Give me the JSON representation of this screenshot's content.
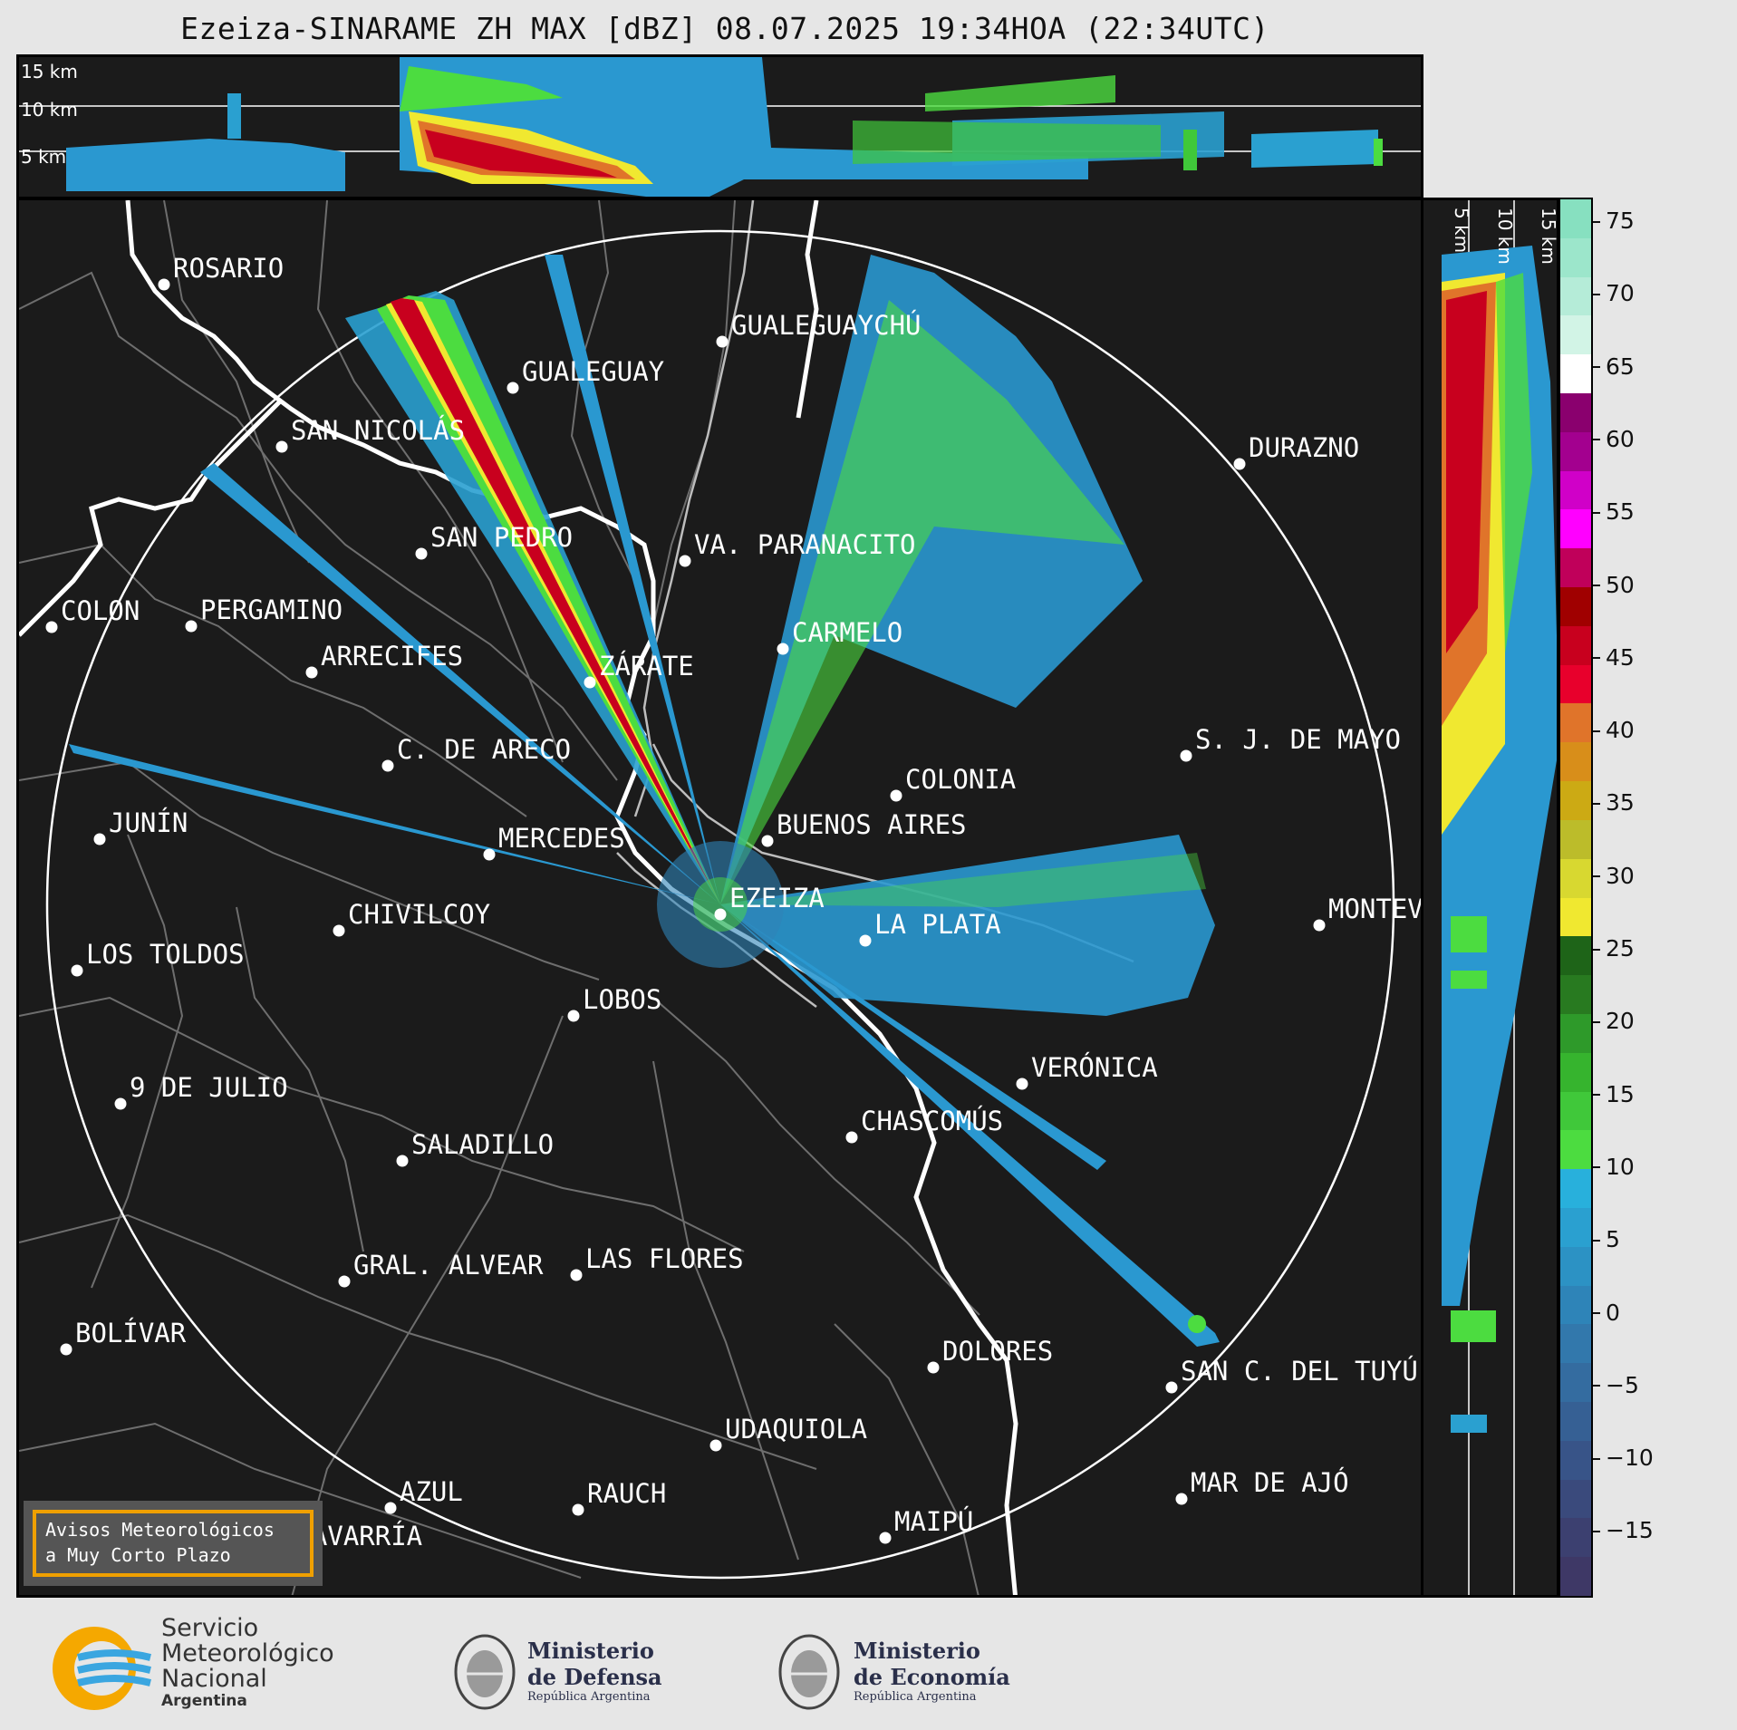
{
  "title": "Ezeiza-SINARAME ZH MAX [dBZ] 08.07.2025 19:34HOA (22:34UTC)",
  "top_panel": {
    "alt_labels": [
      "15 km",
      "10 km",
      "5 km"
    ]
  },
  "right_panel": {
    "alt_labels": [
      "5 km",
      "10 km",
      "15 km"
    ]
  },
  "colorbar": {
    "ticks": [
      "75",
      "70",
      "65",
      "60",
      "55",
      "50",
      "45",
      "40",
      "35",
      "30",
      "25",
      "20",
      "15",
      "10",
      "5",
      "0",
      "−5",
      "−10",
      "−15"
    ],
    "colors": [
      "#87e0c0",
      "#9ce6cb",
      "#b5ecd8",
      "#d2f4e6",
      "#ffffff",
      "#8a006e",
      "#a3008f",
      "#d000c8",
      "#ff00ff",
      "#c0005a",
      "#a00000",
      "#c8001e",
      "#e8002c",
      "#e0742a",
      "#d88e1a",
      "#ccaa14",
      "#bcbc2a",
      "#d8d830",
      "#f0e830",
      "#1e6418",
      "#287a20",
      "#2e9a2a",
      "#36b42e",
      "#40c83a",
      "#4cdc40",
      "#28b0dc",
      "#2aa0d0",
      "#2c92c4",
      "#2e84b8",
      "#3278ac",
      "#346ca0",
      "#366094",
      "#385488",
      "#3a4a7c",
      "#3c4070",
      "#3e3866"
    ]
  },
  "cities": [
    {
      "name": "ROSARIO"
    },
    {
      "name": "GUALEGUAYCHÚ"
    },
    {
      "name": "GUALEGUAY"
    },
    {
      "name": "SAN NICOLÁS"
    },
    {
      "name": "DURAZNO"
    },
    {
      "name": "SAN PEDRO"
    },
    {
      "name": "VA. PARANACITO"
    },
    {
      "name": "COLON"
    },
    {
      "name": "PERGAMINO"
    },
    {
      "name": "CARMELO"
    },
    {
      "name": "ARRECIFES"
    },
    {
      "name": "ZÁRATE"
    },
    {
      "name": "S. J. DE MAYO"
    },
    {
      "name": "C. DE ARECO"
    },
    {
      "name": "COLONIA"
    },
    {
      "name": "JUNÍN"
    },
    {
      "name": "BUENOS AIRES"
    },
    {
      "name": "MERCEDES"
    },
    {
      "name": "EZEIZA"
    },
    {
      "name": "MONTEVIDEO"
    },
    {
      "name": "CHIVILCOY"
    },
    {
      "name": "LA PLATA"
    },
    {
      "name": "LOS TOLDOS"
    },
    {
      "name": "LOBOS"
    },
    {
      "name": "VERÓNICA"
    },
    {
      "name": "9 DE JULIO"
    },
    {
      "name": "CHASCOMÚS"
    },
    {
      "name": "SALADILLO"
    },
    {
      "name": "GRAL. ALVEAR"
    },
    {
      "name": "LAS FLORES"
    },
    {
      "name": "BOLÍVAR"
    },
    {
      "name": "DOLORES"
    },
    {
      "name": "SAN C. DEL TUYÚ"
    },
    {
      "name": "UDAQUIOLA"
    },
    {
      "name": "AZUL"
    },
    {
      "name": "RAUCH"
    },
    {
      "name": "MAR DE AJÓ"
    },
    {
      "name": "MAIPÚ"
    },
    {
      "name": "OLAVARRÍA"
    }
  ],
  "aviso": {
    "line1": "Avisos Meteorológicos",
    "line2": "a Muy Corto Plazo"
  },
  "footer": {
    "smn": [
      "Servicio",
      "Meteorológico",
      "Nacional",
      "Argentina"
    ],
    "defensa": [
      "Ministerio",
      "de Defensa",
      "República Argentina"
    ],
    "economia": [
      "Ministerio",
      "de Economía",
      "República Argentina"
    ]
  }
}
